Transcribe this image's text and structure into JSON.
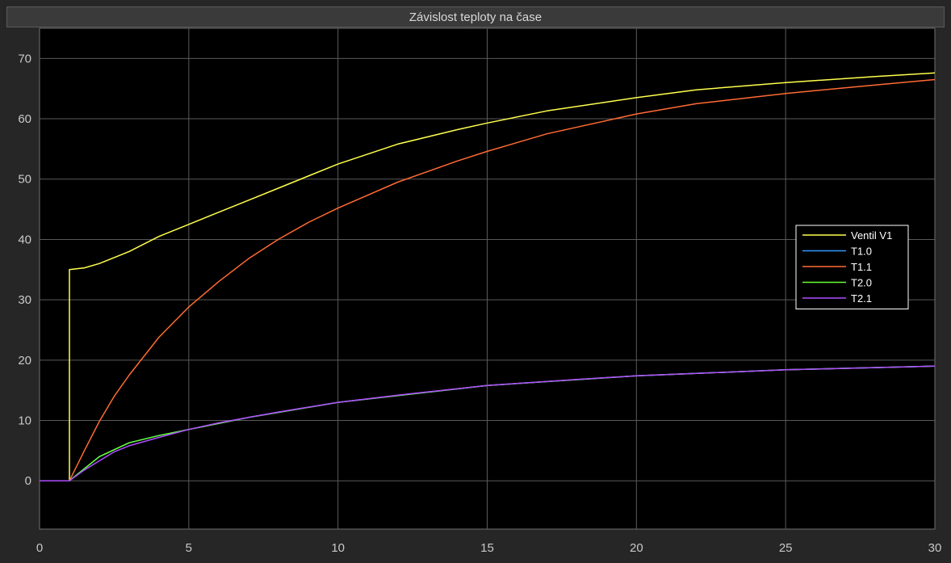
{
  "chart_data": {
    "type": "line",
    "title": "Závislost teploty na čase",
    "xlabel": "",
    "ylabel": "",
    "xlim": [
      0,
      30
    ],
    "ylim": [
      -8,
      75
    ],
    "xticks": [
      0,
      5,
      10,
      15,
      20,
      25,
      30
    ],
    "yticks": [
      0,
      10,
      20,
      30,
      40,
      50,
      60,
      70
    ],
    "grid": true,
    "legend_position": "right",
    "series": [
      {
        "name": "Ventil V1",
        "color": "#ffff4d",
        "x": [
          0,
          1,
          1,
          1.5,
          2,
          3,
          4,
          5,
          6,
          7,
          8,
          9,
          10,
          12,
          14,
          15,
          17,
          20,
          22,
          25,
          28,
          30
        ],
        "y": [
          0,
          0,
          35,
          35.3,
          36,
          38,
          40.5,
          42.5,
          44.5,
          46.5,
          48.5,
          50.5,
          52.5,
          55.8,
          58.2,
          59.3,
          61.3,
          63.5,
          64.8,
          66,
          67,
          67.6
        ]
      },
      {
        "name": "T1.0",
        "color": "#3399ff",
        "x": [
          0,
          1,
          2,
          3,
          4,
          5,
          7,
          10,
          15,
          20,
          25,
          30
        ],
        "y": [
          0,
          0,
          4,
          6.3,
          7.5,
          8.5,
          10.5,
          13,
          15.8,
          17.4,
          18.4,
          19
        ]
      },
      {
        "name": "T1.1",
        "color": "#ff6b33",
        "x": [
          0,
          1,
          1.5,
          2,
          2.5,
          3,
          4,
          5,
          6,
          7,
          8,
          9,
          10,
          12,
          14,
          15,
          17,
          20,
          22,
          25,
          28,
          30
        ],
        "y": [
          0,
          0,
          5,
          9.8,
          14,
          17.5,
          23.8,
          28.8,
          33,
          36.8,
          40,
          42.8,
          45.2,
          49.5,
          53,
          54.6,
          57.5,
          60.8,
          62.5,
          64.2,
          65.6,
          66.5
        ]
      },
      {
        "name": "T2.0",
        "color": "#66ff33",
        "x": [
          0,
          1,
          2,
          3,
          4,
          5,
          7,
          10,
          15,
          20,
          25,
          30
        ],
        "y": [
          0,
          0,
          4,
          6.3,
          7.5,
          8.5,
          10.5,
          13,
          15.8,
          17.4,
          18.4,
          19
        ]
      },
      {
        "name": "T2.1",
        "color": "#b04dff",
        "x": [
          0,
          1,
          1.5,
          2,
          2.5,
          3,
          4,
          5,
          6,
          7,
          8,
          10,
          12,
          15,
          18,
          20,
          25,
          30
        ],
        "y": [
          0,
          0,
          1.8,
          3.3,
          4.8,
          5.8,
          7.2,
          8.5,
          9.6,
          10.5,
          11.4,
          13,
          14.2,
          15.8,
          16.8,
          17.4,
          18.4,
          19
        ]
      }
    ]
  },
  "style": {
    "plot_background": "#000000",
    "frame_background": "#262626",
    "grid_color": "#5a5a5a",
    "axis_text_color": "#c8c8c8"
  }
}
